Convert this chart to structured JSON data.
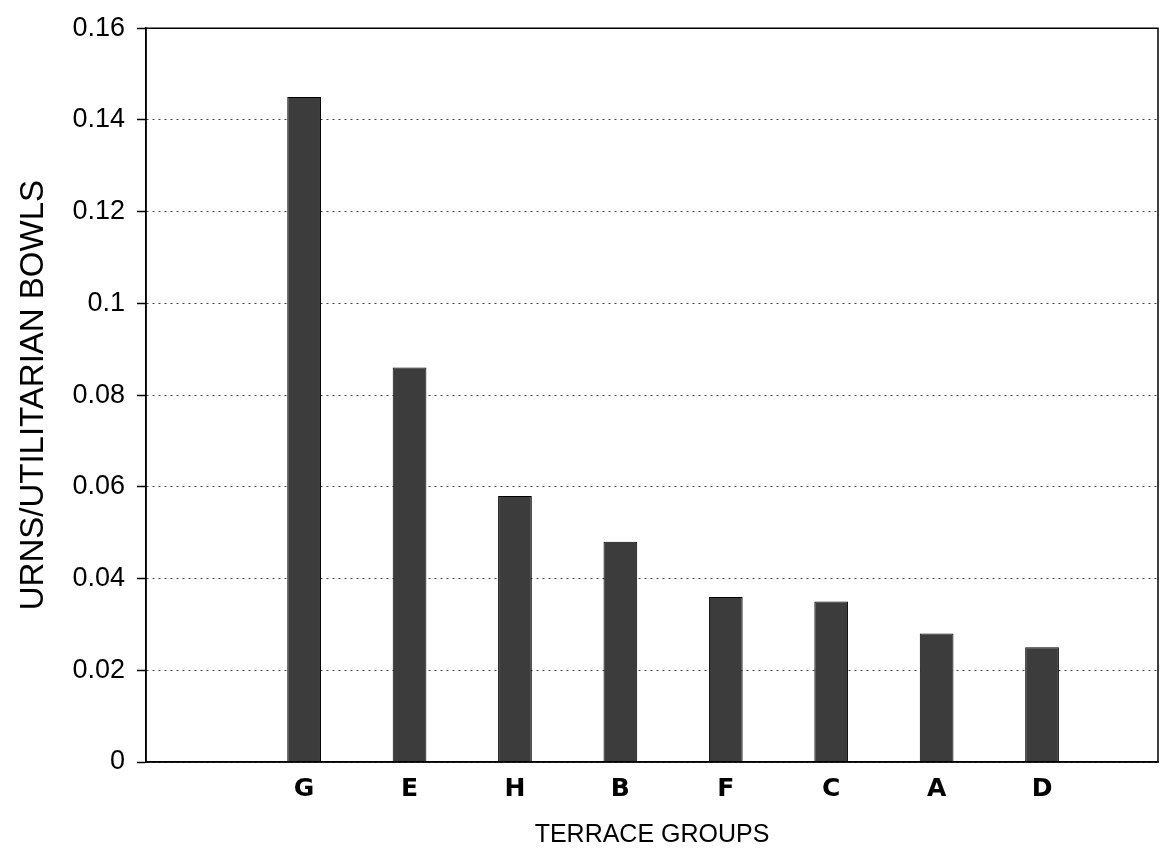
{
  "chart_data": {
    "type": "bar",
    "xlabel": "TERRACE GROUPS",
    "ylabel": "URNS/UTILITARIAN BOWLS",
    "categories": [
      "G",
      "E",
      "H",
      "B",
      "F",
      "C",
      "A",
      "D"
    ],
    "values": [
      0.145,
      0.086,
      0.058,
      0.048,
      0.036,
      0.035,
      0.028,
      0.025
    ],
    "color": "#3c3c3c",
    "ylim": [
      0,
      0.16
    ],
    "yticks": [
      0,
      0.02,
      0.04,
      0.06,
      0.08,
      0.1,
      0.12,
      0.14,
      0.16
    ],
    "grid": "y"
  }
}
